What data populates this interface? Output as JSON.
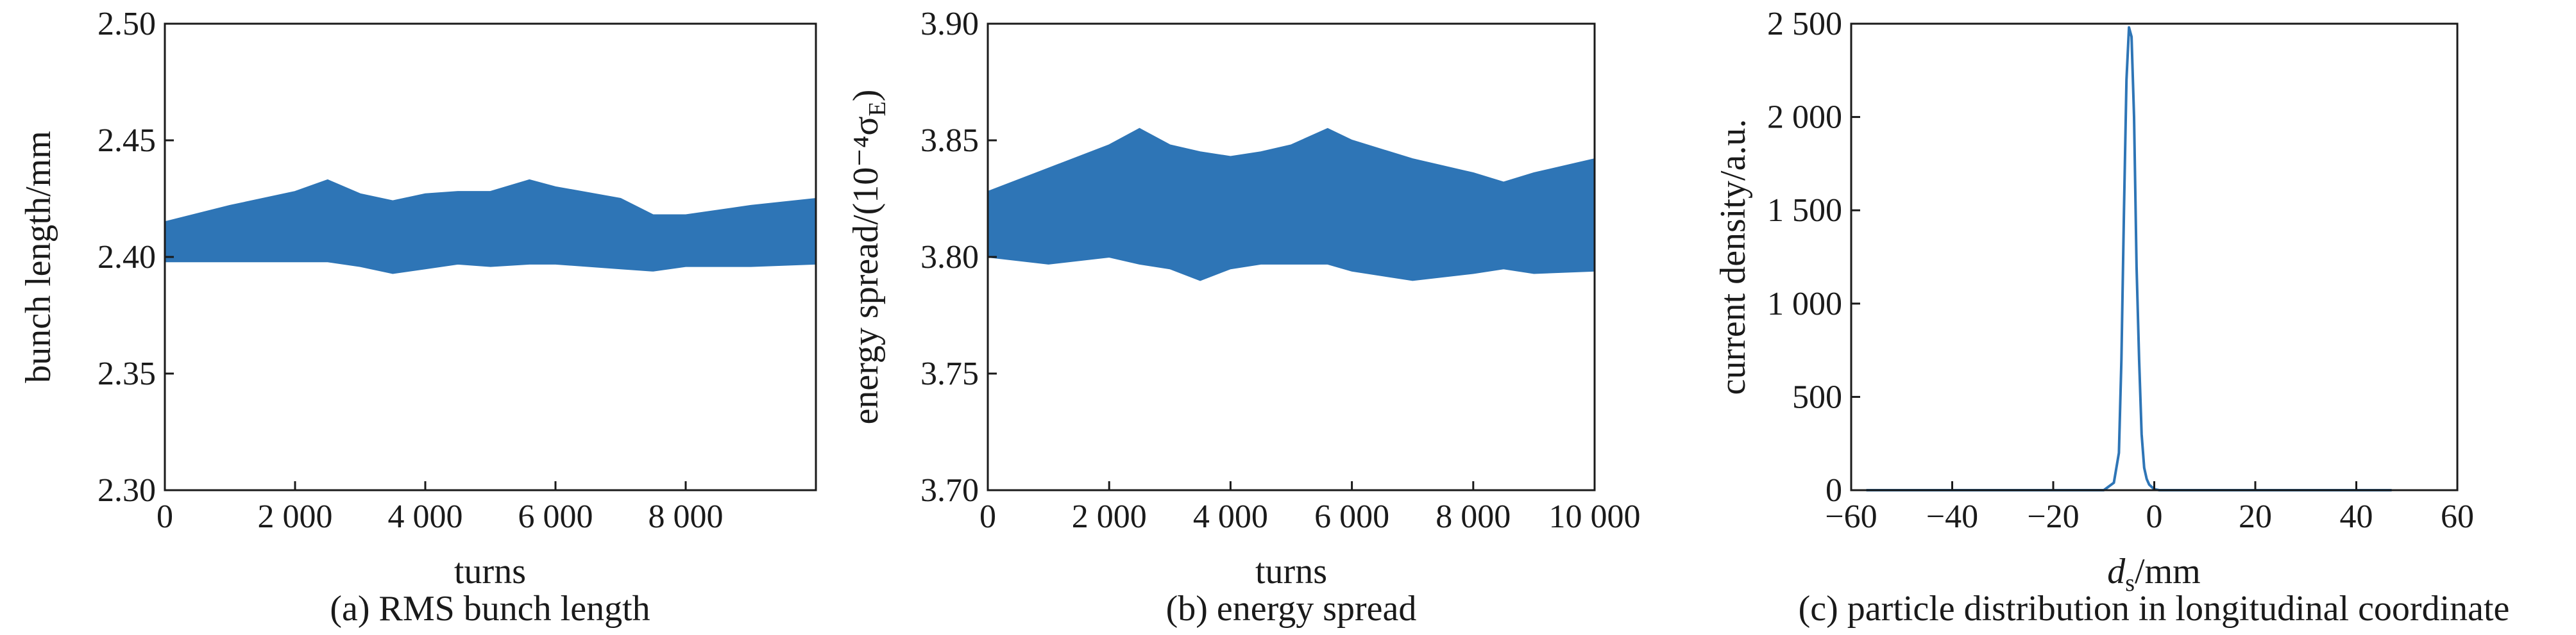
{
  "accent_color": "#2e75b6",
  "chart_data": [
    {
      "type": "area",
      "caption": "(a) RMS bunch length",
      "xlabel": "turns",
      "ylabel": "bunch length/mm",
      "xlim": [
        0,
        10000
      ],
      "ylim": [
        2.3,
        2.5
      ],
      "x_ticks": [
        0,
        2000,
        4000,
        6000,
        8000
      ],
      "x_tick_labels": [
        "0",
        "2 000",
        "4 000",
        "6 000",
        "8 000"
      ],
      "y_ticks": [
        2.3,
        2.35,
        2.4,
        2.45,
        2.5
      ],
      "y_tick_labels": [
        "2.30",
        "2.35",
        "2.40",
        "2.45",
        "2.50"
      ],
      "grid": false,
      "series": [
        {
          "color": "#2e75b6",
          "x": [
            0,
            1000,
            2000,
            2500,
            3000,
            3500,
            4000,
            4500,
            5000,
            5600,
            6000,
            7000,
            7500,
            8000,
            9000,
            10000
          ],
          "upper": [
            2.415,
            2.422,
            2.428,
            2.433,
            2.427,
            2.424,
            2.427,
            2.428,
            2.428,
            2.433,
            2.43,
            2.425,
            2.418,
            2.418,
            2.422,
            2.425
          ],
          "lower": [
            2.398,
            2.398,
            2.398,
            2.398,
            2.396,
            2.393,
            2.395,
            2.397,
            2.396,
            2.397,
            2.397,
            2.395,
            2.394,
            2.396,
            2.396,
            2.397
          ]
        }
      ]
    },
    {
      "type": "area",
      "caption": "(b) energy spread",
      "xlabel": "turns",
      "ylabel": "energy spread/(10⁻⁴σ",
      "ylabel_sub": "E",
      "ylabel_end": ")",
      "xlim": [
        0,
        10000
      ],
      "ylim": [
        3.7,
        3.9
      ],
      "x_ticks": [
        0,
        2000,
        4000,
        6000,
        8000,
        10000
      ],
      "x_tick_labels": [
        "0",
        "2 000",
        "4 000",
        "6 000",
        "8 000",
        "10 000"
      ],
      "y_ticks": [
        3.7,
        3.75,
        3.8,
        3.85,
        3.9
      ],
      "y_tick_labels": [
        "3.70",
        "3.75",
        "3.80",
        "3.85",
        "3.90"
      ],
      "grid": false,
      "series": [
        {
          "color": "#2e75b6",
          "x": [
            0,
            1000,
            2000,
            2500,
            3000,
            3500,
            4000,
            4500,
            5000,
            5600,
            6000,
            7000,
            8000,
            8500,
            9000,
            10000
          ],
          "upper": [
            3.828,
            3.838,
            3.848,
            3.855,
            3.848,
            3.845,
            3.843,
            3.845,
            3.848,
            3.855,
            3.85,
            3.842,
            3.836,
            3.832,
            3.836,
            3.842
          ],
          "lower": [
            3.8,
            3.797,
            3.8,
            3.797,
            3.795,
            3.79,
            3.795,
            3.797,
            3.797,
            3.797,
            3.794,
            3.79,
            3.793,
            3.795,
            3.793,
            3.794
          ]
        }
      ]
    },
    {
      "type": "line",
      "caption": "(c) particle distribution in longitudinal coordinate",
      "xlabel": "d",
      "xlabel_sub": "s",
      "xlabel_end": "/mm",
      "ylabel": "current density/a.u.",
      "xlim": [
        -60,
        60
      ],
      "ylim": [
        0,
        2500
      ],
      "x_ticks": [
        -60,
        -40,
        -20,
        0,
        20,
        40,
        60
      ],
      "x_tick_labels": [
        "−60",
        "−40",
        "−20",
        "0",
        "20",
        "40",
        "60"
      ],
      "y_ticks": [
        0,
        500,
        1000,
        1500,
        2000,
        2500
      ],
      "y_tick_labels": [
        "0",
        "500",
        "1 000",
        "1 500",
        "2 000",
        "2 500"
      ],
      "grid": false,
      "series": [
        {
          "color": "#2e75b6",
          "x": [
            -57,
            -10,
            -8,
            -7,
            -6.5,
            -6,
            -5.5,
            -5,
            -4.5,
            -4,
            -3.5,
            -3,
            -2.5,
            -2,
            -1.5,
            -1,
            0,
            1,
            47
          ],
          "y": [
            0,
            0,
            40,
            200,
            700,
            1500,
            2200,
            2480,
            2430,
            2000,
            1200,
            700,
            300,
            120,
            60,
            30,
            5,
            0,
            0
          ]
        }
      ]
    }
  ]
}
